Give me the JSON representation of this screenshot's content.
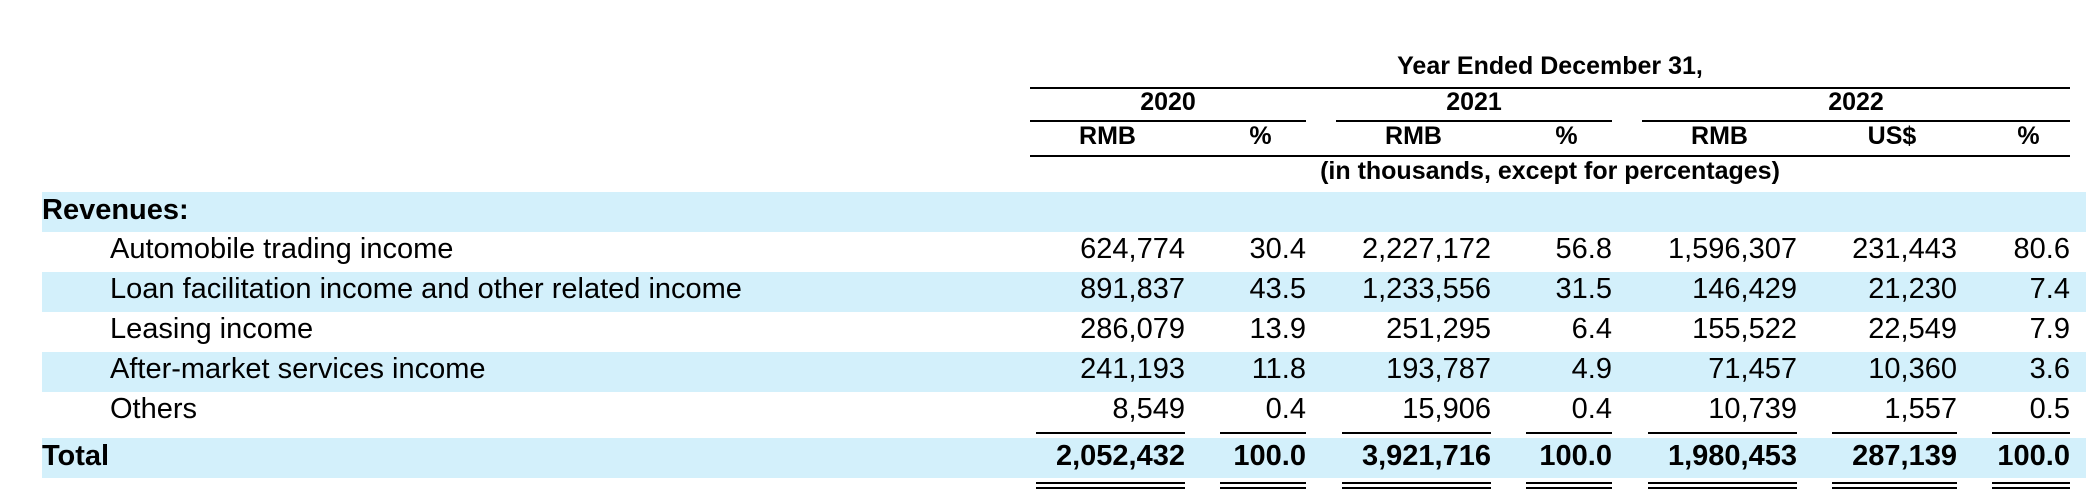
{
  "header": {
    "period_title": "Year Ended December 31,",
    "years": [
      "2020",
      "2021",
      "2022"
    ],
    "columns": [
      "RMB",
      "%",
      "RMB",
      "%",
      "RMB",
      "US$",
      "%"
    ],
    "units_note": "(in thousands, except for percentages)"
  },
  "section_title": "Revenues:",
  "rows": [
    {
      "label": "Automobile trading income",
      "values": [
        "624,774",
        "30.4",
        "2,227,172",
        "56.8",
        "1,596,307",
        "231,443",
        "80.6"
      ]
    },
    {
      "label": "Loan facilitation income and other related income",
      "values": [
        "891,837",
        "43.5",
        "1,233,556",
        "31.5",
        "146,429",
        "21,230",
        "7.4"
      ]
    },
    {
      "label": "Leasing income",
      "values": [
        "286,079",
        "13.9",
        "251,295",
        "6.4",
        "155,522",
        "22,549",
        "7.9"
      ]
    },
    {
      "label": "After-market services income",
      "values": [
        "241,193",
        "11.8",
        "193,787",
        "4.9",
        "71,457",
        "10,360",
        "3.6"
      ]
    },
    {
      "label": "Others",
      "values": [
        "8,549",
        "0.4",
        "15,906",
        "0.4",
        "10,739",
        "1,557",
        "0.5"
      ]
    }
  ],
  "total": {
    "label": "Total",
    "values": [
      "2,052,432",
      "100.0",
      "3,921,716",
      "100.0",
      "1,980,453",
      "287,139",
      "100.0"
    ]
  }
}
